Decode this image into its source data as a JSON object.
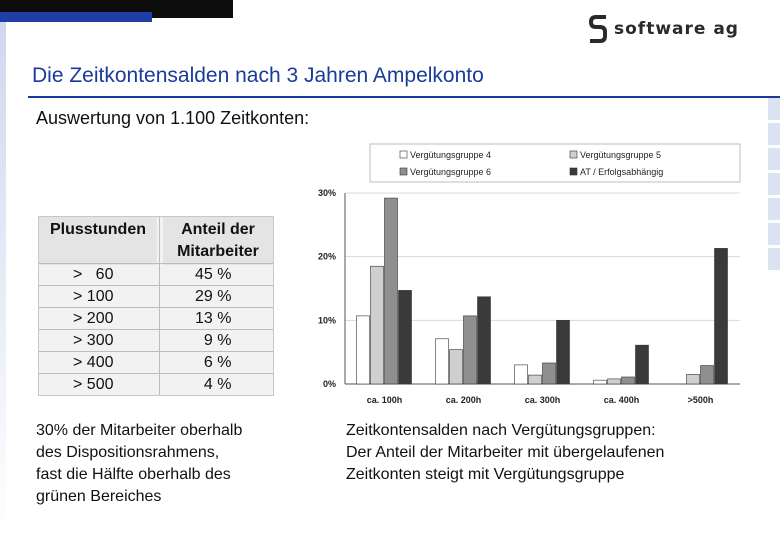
{
  "header": {
    "logo_text": "software ag",
    "title": "Die Zeitkontensalden nach 3 Jahren Ampelkonto",
    "subtitle": "Auswertung von 1.100 Zeitkonten:"
  },
  "colors": {
    "title_blue": "#1a3a9c",
    "top_bar_black": "#0d0d0d",
    "top_bar_blue": "#1f3ea8"
  },
  "table": {
    "headers": [
      "Plusstunden",
      "Anteil der Mitarbeiter"
    ],
    "rows": [
      {
        "hours": ">   60",
        "share": "45 %"
      },
      {
        "hours": "> 100",
        "share": "29 %"
      },
      {
        "hours": "> 200",
        "share": "13 %"
      },
      {
        "hours": "> 300",
        "share": "  9 %"
      },
      {
        "hours": "> 400",
        "share": "  6 %"
      },
      {
        "hours": "> 500",
        "share": "  4 %"
      }
    ]
  },
  "notes": {
    "left": [
      "30% der Mitarbeiter oberhalb",
      "des Dispositionsrahmens,",
      "fast die Hälfte oberhalb des",
      "grünen Bereiches"
    ],
    "right": [
      "Zeitkontensalden nach Vergütungsgruppen:",
      "Der Anteil der Mitarbeiter mit übergelaufenen",
      "Zeitkonten steigt mit Vergütungsgruppe"
    ]
  },
  "chart_data": {
    "type": "bar",
    "categories": [
      "ca. 100h",
      "ca. 200h",
      "ca. 300h",
      "ca. 400h",
      ">500h"
    ],
    "ylim": [
      0,
      30
    ],
    "yticks": [
      "0%",
      "10%",
      "20%",
      "30%"
    ],
    "ytick_values": [
      0,
      10,
      20,
      30
    ],
    "grid": true,
    "legend_position": "top-right",
    "series": [
      {
        "name": "Vergütungsgruppe 4",
        "color": "#ffffff",
        "values": [
          10.7,
          7.1,
          3.0,
          0.6,
          0.0
        ]
      },
      {
        "name": "Vergütungsgruppe 5",
        "color": "#cfcfcf",
        "values": [
          18.5,
          5.4,
          1.4,
          0.8,
          1.5
        ]
      },
      {
        "name": "Vergütungsgruppe 6",
        "color": "#8f8f8f",
        "values": [
          29.2,
          10.7,
          3.3,
          1.1,
          2.9
        ]
      },
      {
        "name": "AT / Erfolgsabhängig",
        "color": "#3a3a3a",
        "values": [
          14.7,
          13.7,
          10.0,
          6.1,
          21.3
        ]
      }
    ]
  }
}
